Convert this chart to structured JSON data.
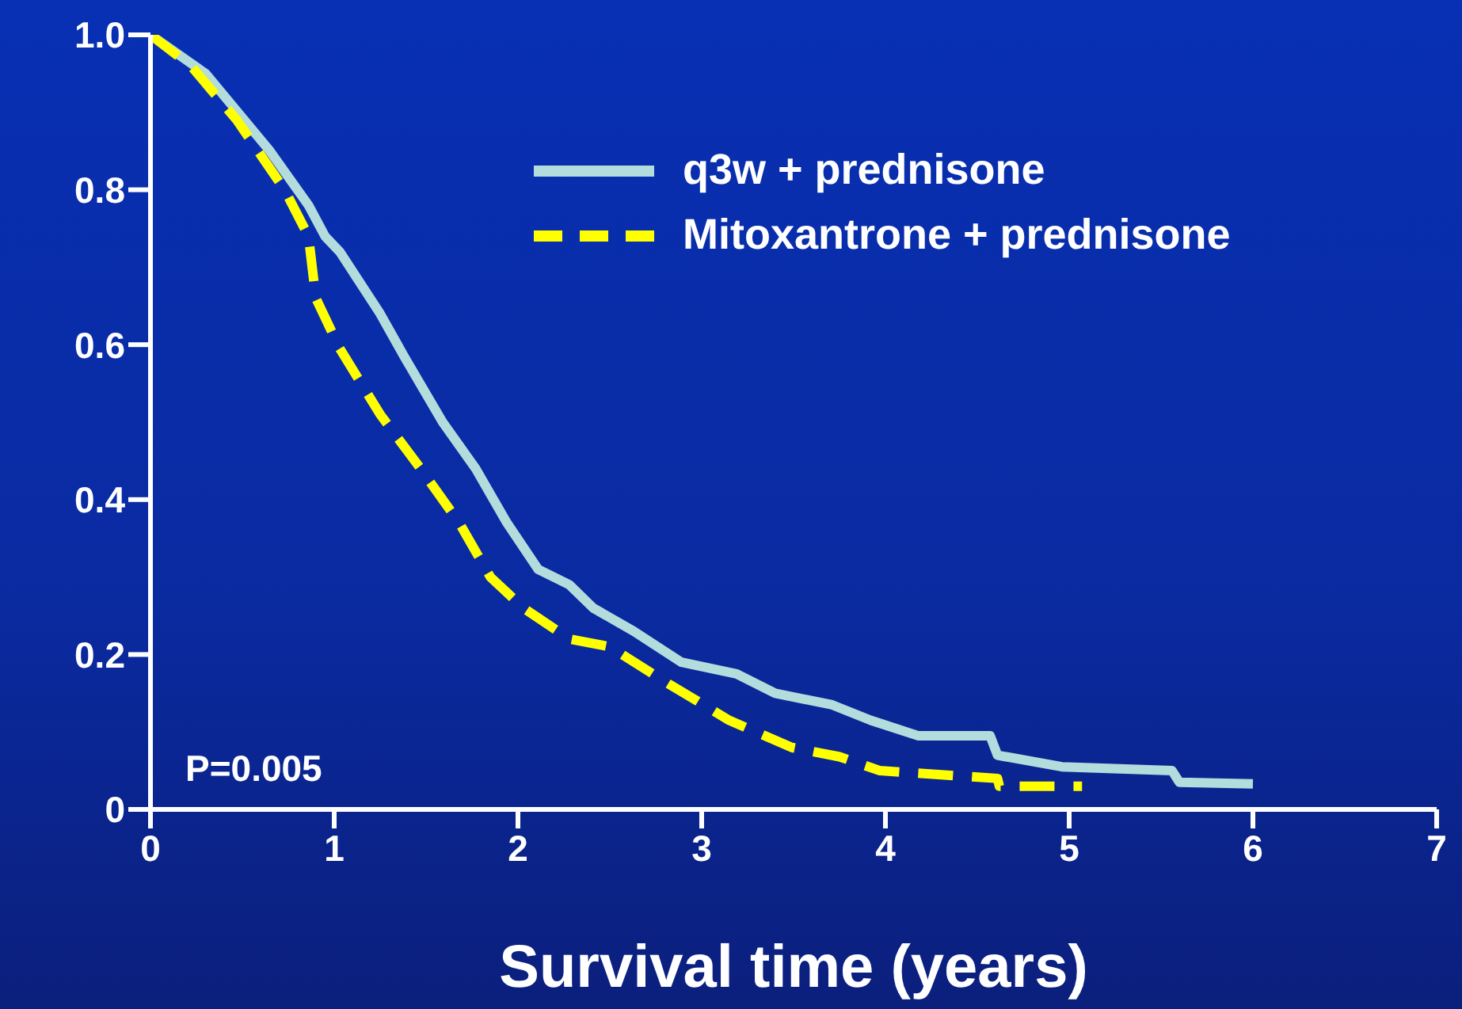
{
  "chart_data": {
    "type": "line",
    "xlabel": "Survival time (years)",
    "annotations": [
      "P=0.005"
    ],
    "legend": "top right",
    "grid": false,
    "marker": "none",
    "xlim": [
      0,
      7
    ],
    "xticks": [
      0,
      1,
      2,
      3,
      4,
      5,
      6,
      7
    ],
    "ylim": [
      0,
      1
    ],
    "yticks": [
      0,
      0.2,
      0.4,
      0.6,
      0.8,
      {
        "value": 1,
        "label": "1.0"
      }
    ],
    "series": [
      {
        "name": "q3w + prednisone",
        "color": "#b3dcdc",
        "line_style": "solid",
        "x": [
          0,
          0.3,
          0.65,
          0.86,
          0.95,
          1.03,
          1.25,
          1.38,
          1.59,
          1.77,
          1.94,
          2.11,
          2.28,
          2.41,
          2.63,
          2.89,
          3.19,
          3.4,
          3.71,
          3.92,
          4.18,
          4.57,
          4.61,
          4.96,
          5.56,
          5.6,
          6.0
        ],
        "values": [
          1.0,
          0.95,
          0.85,
          0.78,
          0.74,
          0.72,
          0.64,
          0.585,
          0.5,
          0.44,
          0.37,
          0.31,
          0.29,
          0.26,
          0.23,
          0.19,
          0.175,
          0.15,
          0.135,
          0.115,
          0.095,
          0.095,
          0.07,
          0.055,
          0.05,
          0.035,
          0.033
        ]
      },
      {
        "name": "Mitoxantrone + prednisone",
        "color": "#ffff00",
        "line_style": "dashed",
        "x": [
          0,
          0.22,
          0.47,
          0.73,
          0.86,
          0.9,
          1.03,
          1.25,
          1.47,
          1.68,
          1.85,
          2.03,
          2.28,
          2.5,
          2.8,
          3.15,
          3.49,
          3.75,
          3.97,
          4.61,
          4.62,
          5.07
        ],
        "values": [
          1.0,
          0.96,
          0.89,
          0.8,
          0.74,
          0.66,
          0.595,
          0.51,
          0.44,
          0.37,
          0.3,
          0.26,
          0.22,
          0.21,
          0.165,
          0.115,
          0.08,
          0.068,
          0.05,
          0.04,
          0.03,
          0.03
        ]
      }
    ]
  }
}
